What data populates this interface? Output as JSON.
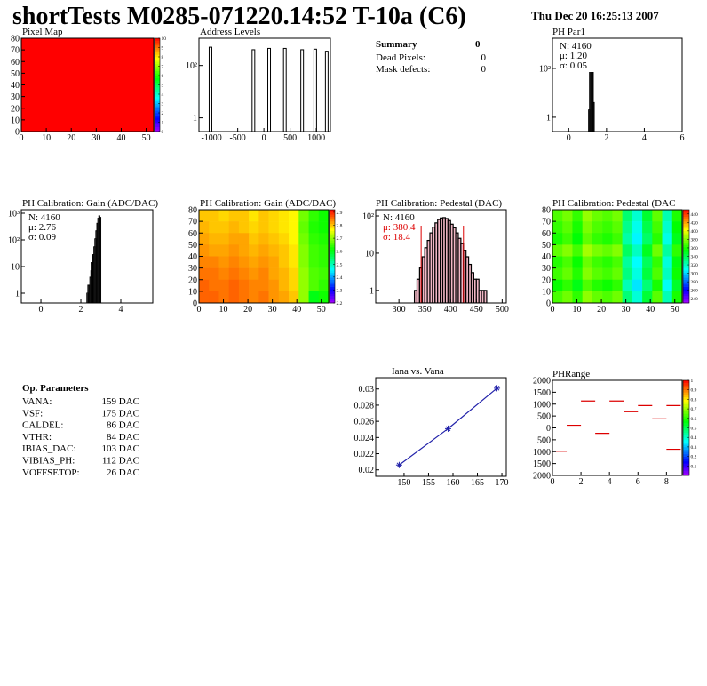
{
  "header": {
    "title": "shortTests M0285-071220.14:52 T-10a (C6)",
    "date": "Thu Dec 20 16:25:13 2007"
  },
  "summary": {
    "title": "Summary",
    "value": "0",
    "rows": [
      [
        "Dead Pixels:",
        "0"
      ],
      [
        "Mask defects:",
        "0"
      ]
    ]
  },
  "parameters": {
    "title": "Op. Parameters",
    "rows": [
      [
        "VANA:",
        "159 DAC"
      ],
      [
        "VSF:",
        "175 DAC"
      ],
      [
        "CALDEL:",
        "86 DAC"
      ],
      [
        "VTHR:",
        "84 DAC"
      ],
      [
        "IBIAS_DAC:",
        "103 DAC"
      ],
      [
        "VIBIAS_PH:",
        "112 DAC"
      ],
      [
        "VOFFSETOP:",
        "26 DAC"
      ]
    ]
  },
  "chart_data": [
    {
      "type": "heatmap",
      "title": "Pixel Map",
      "xlim": [
        0,
        53
      ],
      "ylim": [
        0,
        80
      ],
      "xticks": [
        0,
        10,
        20,
        30,
        40,
        50
      ],
      "yticks": [
        0,
        10,
        20,
        30,
        40,
        50,
        60,
        70,
        80
      ],
      "zlim": [
        0,
        10
      ],
      "zticks": [
        0,
        1,
        2,
        3,
        4,
        5,
        6,
        7,
        8,
        9,
        10
      ],
      "z": [
        [
          10
        ]
      ]
    },
    {
      "type": "spikes",
      "title": "Address Levels",
      "x": [
        -1020,
        -200,
        100,
        400,
        730,
        980,
        1200
      ],
      "values": [
        500,
        400,
        450,
        450,
        400,
        420,
        350
      ],
      "xlim": [
        -1240,
        1270
      ],
      "ylim": [
        0.3,
        1100
      ],
      "log_y": true,
      "xticks": [
        -1000,
        -500,
        0,
        500,
        1000
      ],
      "yticks": [
        1,
        {
          "value": 100,
          "label": "10²"
        }
      ],
      "color": "#000000"
    },
    {
      "type": "histogram",
      "title": "PH Par1",
      "bins": [
        1.05,
        1.1,
        1.15,
        1.2,
        1.25,
        1.3,
        1.35
      ],
      "values": [
        2,
        120,
        850,
        900,
        250,
        4
      ],
      "xlim": [
        -0.86,
        6
      ],
      "ylim": [
        0.26,
        1720
      ],
      "log_y": true,
      "xticks": [
        0,
        2,
        4,
        6
      ],
      "yticks": [
        1,
        {
          "value": 100,
          "label": "10²"
        }
      ],
      "stats": [
        "N: 4160",
        "μ: 1.20",
        "σ: 0.05"
      ],
      "stats_colors": [
        "#000000",
        "#000000",
        "#000000"
      ],
      "color": "#000000"
    },
    {
      "type": "histogram",
      "title": "PH Calibration: Gain (ADC/DAC)",
      "bins": [
        2.3,
        2.35,
        2.4,
        2.45,
        2.5,
        2.55,
        2.6,
        2.65,
        2.7,
        2.75,
        2.8,
        2.85,
        2.9,
        2.95,
        3.0
      ],
      "values": [
        1,
        2,
        2,
        4,
        7,
        14,
        28,
        55,
        110,
        220,
        420,
        650,
        800,
        700
      ],
      "xlim": [
        -0.98,
        5.6
      ],
      "ylim": [
        0.43,
        1360
      ],
      "log_y": true,
      "xticks": [
        0,
        2,
        4
      ],
      "yticks": [
        1,
        10,
        {
          "value": 100,
          "label": "10²"
        },
        {
          "value": 1000,
          "label": "10³"
        }
      ],
      "stats": [
        "N: 4160",
        "μ: 2.76",
        "σ: 0.09"
      ],
      "stats_colors": [
        "#000000",
        "#000000",
        "#000000"
      ],
      "color": "#000000"
    },
    {
      "type": "heatmap",
      "title": "PH Calibration: Gain (ADC/DAC)",
      "xlim": [
        0,
        53
      ],
      "ylim": [
        0,
        80
      ],
      "xticks": [
        0,
        10,
        20,
        30,
        40,
        50
      ],
      "yticks": [
        0,
        10,
        20,
        30,
        40,
        50,
        60,
        70,
        80
      ],
      "zlim": [
        2.2,
        2.92
      ],
      "zticks": [
        2.2,
        2.3,
        2.4,
        2.5,
        2.6,
        2.7,
        2.8,
        2.9
      ],
      "z": [
        [
          2.8,
          2.8,
          2.79,
          2.8,
          2.8,
          2.78,
          2.8,
          2.79,
          2.78,
          2.77,
          2.68,
          2.64,
          2.62
        ],
        [
          2.81,
          2.8,
          2.8,
          2.81,
          2.8,
          2.79,
          2.8,
          2.79,
          2.78,
          2.77,
          2.67,
          2.63,
          2.62
        ],
        [
          2.82,
          2.81,
          2.81,
          2.82,
          2.82,
          2.8,
          2.81,
          2.8,
          2.79,
          2.77,
          2.68,
          2.64,
          2.63
        ],
        [
          2.83,
          2.82,
          2.82,
          2.83,
          2.82,
          2.81,
          2.82,
          2.81,
          2.8,
          2.78,
          2.69,
          2.65,
          2.64
        ],
        [
          2.84,
          2.84,
          2.83,
          2.84,
          2.83,
          2.82,
          2.83,
          2.82,
          2.8,
          2.78,
          2.69,
          2.65,
          2.64
        ],
        [
          2.85,
          2.85,
          2.84,
          2.85,
          2.84,
          2.83,
          2.84,
          2.82,
          2.81,
          2.79,
          2.7,
          2.66,
          2.65
        ],
        [
          2.86,
          2.85,
          2.85,
          2.86,
          2.85,
          2.84,
          2.84,
          2.83,
          2.81,
          2.79,
          2.7,
          2.66,
          2.64
        ],
        [
          2.86,
          2.86,
          2.85,
          2.86,
          2.85,
          2.84,
          2.85,
          2.83,
          2.82,
          2.8,
          2.7,
          2.6,
          2.62
        ]
      ]
    },
    {
      "type": "histogram",
      "title": "PH Calibration: Pedestal (DAC)",
      "bins": [
        330,
        335,
        340,
        345,
        350,
        355,
        360,
        365,
        370,
        375,
        380,
        385,
        390,
        395,
        400,
        405,
        410,
        415,
        420,
        425,
        430,
        435,
        440,
        445,
        450,
        455,
        460,
        465,
        470
      ],
      "values": [
        1,
        2,
        4,
        8,
        14,
        22,
        35,
        50,
        65,
        80,
        88,
        90,
        85,
        75,
        60,
        48,
        35,
        25,
        18,
        12,
        8,
        5,
        3,
        2,
        2,
        1,
        1,
        1
      ],
      "xlim": [
        255,
        508
      ],
      "ylim": [
        0.46,
        147
      ],
      "log_y": true,
      "xticks": [
        300,
        350,
        400,
        450,
        500
      ],
      "yticks": [
        1,
        10,
        {
          "value": 100,
          "label": "10²"
        }
      ],
      "cut_lines": [
        343,
        425
      ],
      "cut_color": "#dd0000",
      "fill": "#f2b8c6",
      "stats": [
        "N: 4160",
        "μ: 380.4",
        "σ: 18.4"
      ],
      "stats_colors": [
        "#000000",
        "#dd0000",
        "#dd0000"
      ],
      "color": "#000000"
    },
    {
      "type": "heatmap",
      "title": "PH Calibration: Pedestal (DAC",
      "xlim": [
        0,
        53
      ],
      "ylim": [
        0,
        80
      ],
      "xticks": [
        0,
        10,
        20,
        30,
        40,
        50
      ],
      "yticks": [
        0,
        10,
        20,
        30,
        40,
        50,
        60,
        70,
        80
      ],
      "zlim": [
        230,
        450
      ],
      "zticks": [
        240,
        260,
        280,
        300,
        320,
        340,
        360,
        380,
        400,
        420,
        440
      ],
      "z": [
        [
          370,
          377,
          365,
          383,
          375,
          371,
          377,
          335,
          317,
          347,
          373,
          323,
          361
        ],
        [
          365,
          372,
          360,
          378,
          370,
          366,
          372,
          330,
          312,
          342,
          368,
          318,
          356
        ],
        [
          360,
          367,
          355,
          373,
          365,
          361,
          367,
          325,
          307,
          337,
          363,
          313,
          351
        ],
        [
          373,
          380,
          368,
          386,
          378,
          374,
          380,
          338,
          320,
          350,
          376,
          326,
          364
        ],
        [
          362,
          369,
          357,
          375,
          367,
          363,
          369,
          327,
          309,
          339,
          365,
          315,
          353
        ],
        [
          367,
          374,
          362,
          380,
          372,
          368,
          374,
          332,
          314,
          344,
          370,
          320,
          358
        ],
        [
          357,
          364,
          352,
          370,
          362,
          358,
          364,
          322,
          304,
          334,
          360,
          310,
          348
        ],
        [
          369,
          376,
          364,
          382,
          374,
          370,
          376,
          334,
          316,
          346,
          372,
          322,
          360
        ]
      ]
    },
    {
      "type": "scatter",
      "title": "Iana vs. Vana",
      "x": [
        149,
        159,
        169
      ],
      "values": [
        0.0206,
        0.0251,
        0.0301
      ],
      "xlim": [
        144.2,
        170.9
      ],
      "ylim": [
        0.0192,
        0.0314
      ],
      "xticks": [
        150,
        155,
        160,
        165,
        170
      ],
      "yticks": [
        0.02,
        0.022,
        0.024,
        0.026,
        0.028,
        0.03
      ],
      "color": "#2222aa"
    },
    {
      "type": "segments",
      "title": "PHRange",
      "x": [
        0,
        1,
        2,
        3,
        4,
        5,
        6,
        7,
        8,
        8
      ],
      "values": [
        -980,
        110,
        1130,
        -230,
        1130,
        680,
        940,
        380,
        940,
        -900
      ],
      "xlim": [
        0,
        9.1
      ],
      "ylim": [
        -2000,
        2000
      ],
      "xticks": [
        0,
        2,
        4,
        6,
        8
      ],
      "yticks": [
        {
          "value": -2000,
          "label": "2000"
        },
        {
          "value": -1500,
          "label": "1500"
        },
        {
          "value": -1000,
          "label": "1000"
        },
        {
          "value": -500,
          "label": "500"
        },
        0,
        500,
        1000,
        1500,
        2000
      ],
      "zlim": [
        0,
        1
      ],
      "zticks": [
        0.1,
        0.2,
        0.3,
        0.4,
        0.5,
        0.6,
        0.7,
        0.8,
        0.9,
        1
      ],
      "color": "#dd0000"
    }
  ]
}
